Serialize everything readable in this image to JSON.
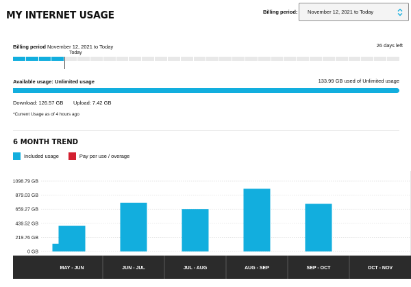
{
  "header": {
    "title": "MY INTERNET USAGE",
    "billing_period_label": "Billing period:",
    "billing_period_value": "November 12, 2021 to Today"
  },
  "billing": {
    "label": "Billing period",
    "range": "November 12, 2021 to Today",
    "days_left": "26 days left",
    "today_label": "Today",
    "days_elapsed": 4,
    "days_total": 30,
    "progress_color": "#12aede"
  },
  "usage": {
    "available_label": "Available usage: Unlimited usage",
    "used_text": "133.99 GB used of Unlimited usage",
    "download": "Download: 126.57 GB",
    "upload": "Upload: 7.42 GB",
    "as_of": "*Current Usage as of 4 hours ago",
    "bar_fill_fraction": 1.0
  },
  "trend": {
    "title": "6 MONTH TREND",
    "legend": [
      {
        "label": "Included usage",
        "color": "#12aede"
      },
      {
        "label": "Pay per use / overage",
        "color": "#d32030"
      }
    ]
  },
  "chart_data": {
    "type": "bar",
    "categories": [
      "MAY - JUN",
      "JUN - JUL",
      "JUL - AUG",
      "AUG - SEP",
      "SEP - OCT",
      "OCT - NOV"
    ],
    "values": [
      400,
      760,
      660,
      980,
      745,
      0
    ],
    "extra_bar": {
      "category_index": 0,
      "value": 120
    },
    "yticks": [
      "0 GB",
      "219.76 GB",
      "439.52 GB",
      "659.27 GB",
      "879.03 GB",
      "1098.79 GB"
    ],
    "ylim": [
      0,
      1098.79
    ],
    "grid": true,
    "bar_color": "#12aede",
    "axis_band_color": "#2b2b2b"
  }
}
